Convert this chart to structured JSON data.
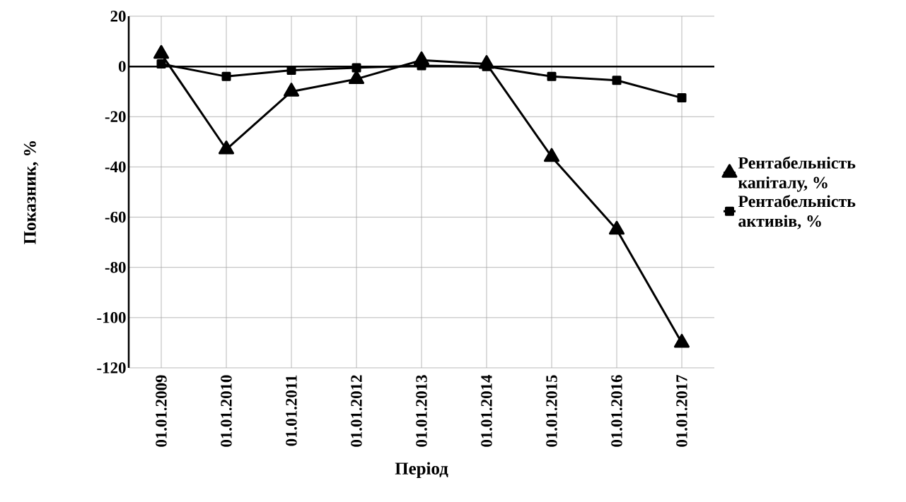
{
  "chart_data": {
    "type": "line",
    "xlabel": "Період",
    "ylabel": "Показник, %",
    "categories": [
      "01.01.2009",
      "01.01.2010",
      "01.01.2011",
      "01.01.2012",
      "01.01.2013",
      "01.01.2014",
      "01.01.2015",
      "01.01.2016",
      "01.01.2017"
    ],
    "series": [
      {
        "name": "Рентабельність капіталу, %",
        "color": "#000000",
        "marker": "triangle",
        "values": [
          5,
          -33,
          -10,
          -5,
          2.5,
          1,
          -36,
          -65,
          -110
        ]
      },
      {
        "name": "Рентабельність активів, %",
        "color": "#000000",
        "marker": "square",
        "values": [
          1,
          -4,
          -1.5,
          -0.5,
          0.3,
          0,
          -4,
          -5.5,
          -12.5
        ]
      }
    ],
    "ylim": [
      -120,
      20
    ],
    "yticks": [
      -120,
      -100,
      -80,
      -60,
      -40,
      -20,
      0,
      20
    ],
    "grid": true,
    "legend": "right"
  }
}
